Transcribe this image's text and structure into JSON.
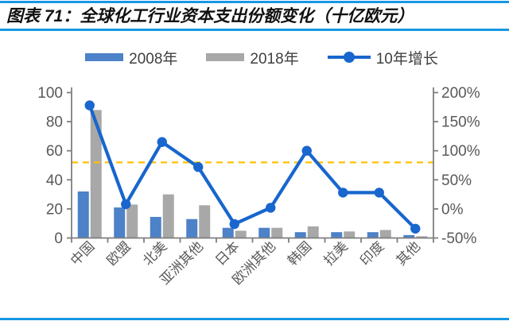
{
  "header": {
    "title": "图表 71：全球化工行业资本支出份额变化（十亿欧元）"
  },
  "legend": {
    "items": [
      {
        "label": "2008年",
        "swatch": "bar",
        "color": "#4D81C8"
      },
      {
        "label": "2018年",
        "swatch": "bar",
        "color": "#A8A8A8"
      },
      {
        "label": "10年增长",
        "swatch": "line-marker",
        "color": "#1866CE"
      }
    ]
  },
  "chart_data": {
    "type": "bar",
    "subtype": "grouped-bars-with-line-on-secondary-axis",
    "title": "全球化工行业资本支出份额变化（十亿欧元）",
    "categories": [
      "中国",
      "欧盟",
      "北美",
      "亚洲其他",
      "日本",
      "欧洲其他",
      "韩国",
      "拉美",
      "印度",
      "其他"
    ],
    "series": [
      {
        "name": "2008年",
        "type": "bar",
        "axis": "left",
        "color": "#4D81C8",
        "values": [
          32,
          21,
          14.5,
          13,
          7,
          7,
          4,
          4,
          4,
          2
        ]
      },
      {
        "name": "2018年",
        "type": "bar",
        "axis": "left",
        "color": "#A8A8A8",
        "values": [
          88,
          23,
          30,
          22.5,
          5,
          7,
          8,
          4.5,
          5.5,
          1.2
        ]
      },
      {
        "name": "10年增长",
        "type": "line",
        "axis": "right",
        "color": "#1866CE",
        "values": [
          178,
          8,
          115,
          72,
          -26,
          2,
          100,
          28,
          28,
          -34
        ]
      }
    ],
    "left_axis": {
      "min": 0,
      "max": 100,
      "tick_values": [
        0,
        20,
        40,
        60,
        80,
        100
      ],
      "tick_labels": [
        "0",
        "20",
        "40",
        "60",
        "80",
        "100"
      ]
    },
    "right_axis": {
      "min": -50,
      "max": 200,
      "tick_values": [
        -50,
        0,
        50,
        100,
        150,
        200
      ],
      "tick_labels": [
        "-50%",
        "0%",
        "50%",
        "100%",
        "150%",
        "200%"
      ]
    },
    "reference_line": {
      "axis": "right",
      "value": 80,
      "style": "dashed",
      "color": "#FFC000"
    },
    "grid": "off",
    "legend_position": "top",
    "axis_text_color": "#595959",
    "axis_line_color": "#7F7F7F"
  },
  "footer": {
    "rule_color": "#1697E3"
  }
}
